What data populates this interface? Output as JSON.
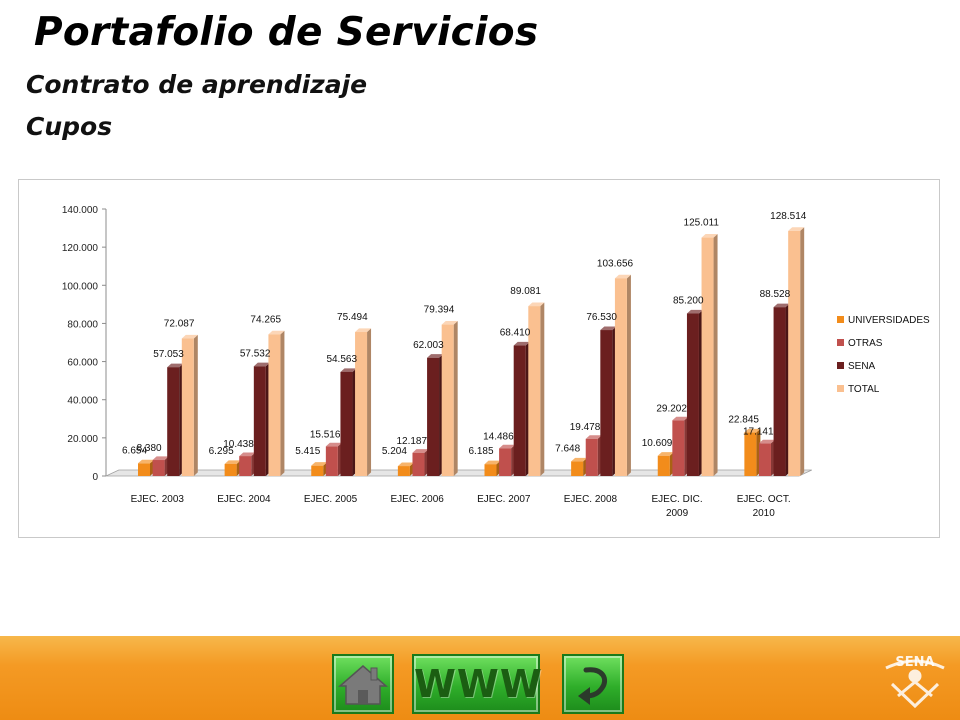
{
  "header": {
    "title": "Portafolio de Servicios",
    "subtitle1": "Contrato de aprendizaje",
    "subtitle2": "Cupos"
  },
  "chart_data": {
    "type": "bar",
    "title": "",
    "xlabel": "",
    "ylabel": "",
    "ylim": [
      0,
      140000
    ],
    "yticks": [
      "0",
      "20.000",
      "40.000",
      "60.000",
      "80.000",
      "100.000",
      "120.000",
      "140.000"
    ],
    "ytick_values": [
      0,
      20000,
      40000,
      60000,
      80000,
      100000,
      120000,
      140000
    ],
    "grid": false,
    "legend_position": "right",
    "categories": [
      [
        "EJEC. 2003"
      ],
      [
        "EJEC. 2004"
      ],
      [
        "EJEC. 2005"
      ],
      [
        "EJEC. 2006"
      ],
      [
        "EJEC. 2007"
      ],
      [
        "EJEC. 2008"
      ],
      [
        "EJEC. DIC.",
        "2009"
      ],
      [
        "EJEC. OCT.",
        "2010"
      ]
    ],
    "series": [
      {
        "name": "UNIVERSIDADES",
        "color": "#F28C1B",
        "values": [
          6654,
          6295,
          5415,
          5204,
          6185,
          7648,
          10609,
          22845
        ],
        "labels": [
          "6.654",
          "6.295",
          "5.415",
          "5.204",
          "6.185",
          "7.648",
          "10.609",
          "22.845"
        ]
      },
      {
        "name": "OTRAS",
        "color": "#C0504D",
        "values": [
          8380,
          10438,
          15516,
          12187,
          14486,
          19478,
          29202,
          17141
        ],
        "labels": [
          "8.380",
          "10.438",
          "15.516",
          "12.187",
          "14.486",
          "19.478",
          "29.202",
          "17.141"
        ]
      },
      {
        "name": "SENA",
        "color": "#6B1F1F",
        "values": [
          57053,
          57532,
          54563,
          62003,
          68410,
          76530,
          85200,
          88528
        ],
        "labels": [
          "57.053",
          "57.532",
          "54.563",
          "62.003",
          "68.410",
          "76.530",
          "85.200",
          "88.528"
        ]
      },
      {
        "name": "TOTAL",
        "color": "#FAC090",
        "values": [
          72087,
          74265,
          75494,
          79394,
          89081,
          103656,
          125011,
          128514
        ],
        "labels": [
          "72.087",
          "74.265",
          "75.494",
          "79.394",
          "89.081",
          "103.656",
          "125.011",
          "128.514"
        ]
      }
    ]
  },
  "footer": {
    "www_label": "WWW",
    "home_icon": "home-icon",
    "back_icon": "back-arrow-icon",
    "logo_text": "SENA",
    "colors": {
      "bar": "#F49A24",
      "button": "#2FAE2A"
    }
  }
}
